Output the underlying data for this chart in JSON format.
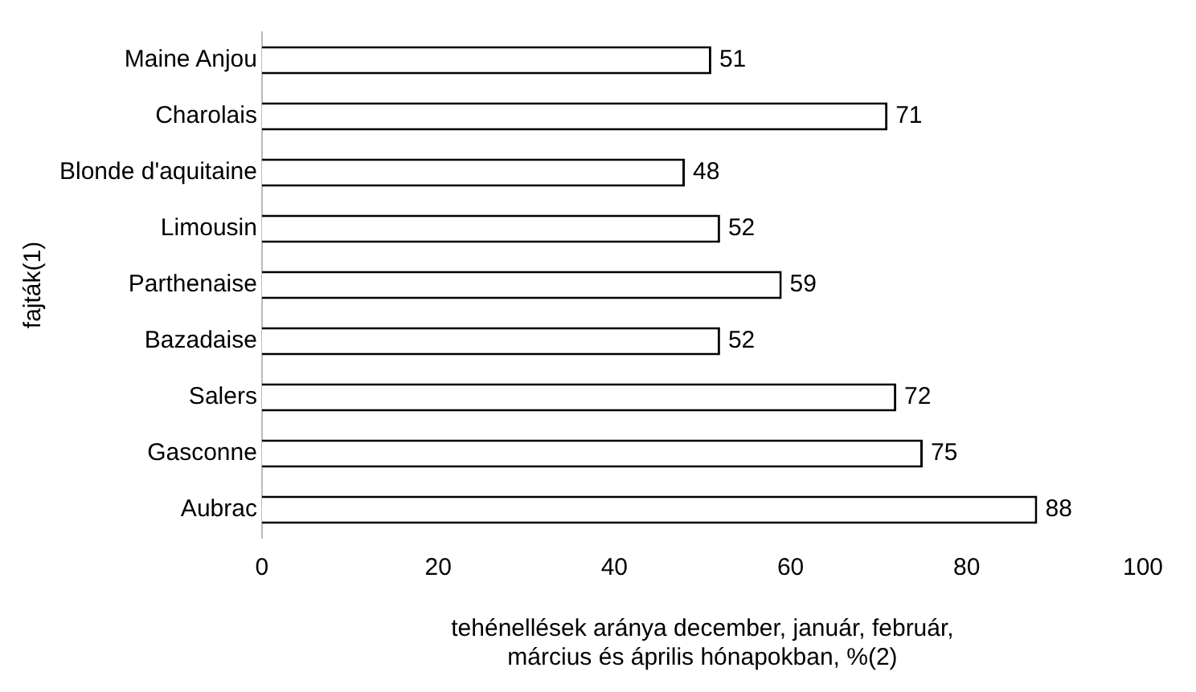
{
  "chart_data": {
    "type": "bar",
    "orientation": "horizontal",
    "categories": [
      "Maine Anjou",
      "Charolais",
      "Blonde d'aquitaine",
      "Limousin",
      "Parthenaise",
      "Bazadaise",
      "Salers",
      "Gasconne",
      "Aubrac"
    ],
    "values": [
      51,
      71,
      48,
      52,
      59,
      52,
      72,
      75,
      88
    ],
    "color": "#ffffff",
    "xlim": [
      0,
      100
    ],
    "xticks": [
      0,
      20,
      40,
      60,
      80,
      100
    ],
    "xlabel": "tehénellések aránya december, január, február,\nmárcius és április hónapokban, %(2)",
    "ylabel": "fajták(1)",
    "data_labels": true,
    "grid": false,
    "legend": false
  }
}
